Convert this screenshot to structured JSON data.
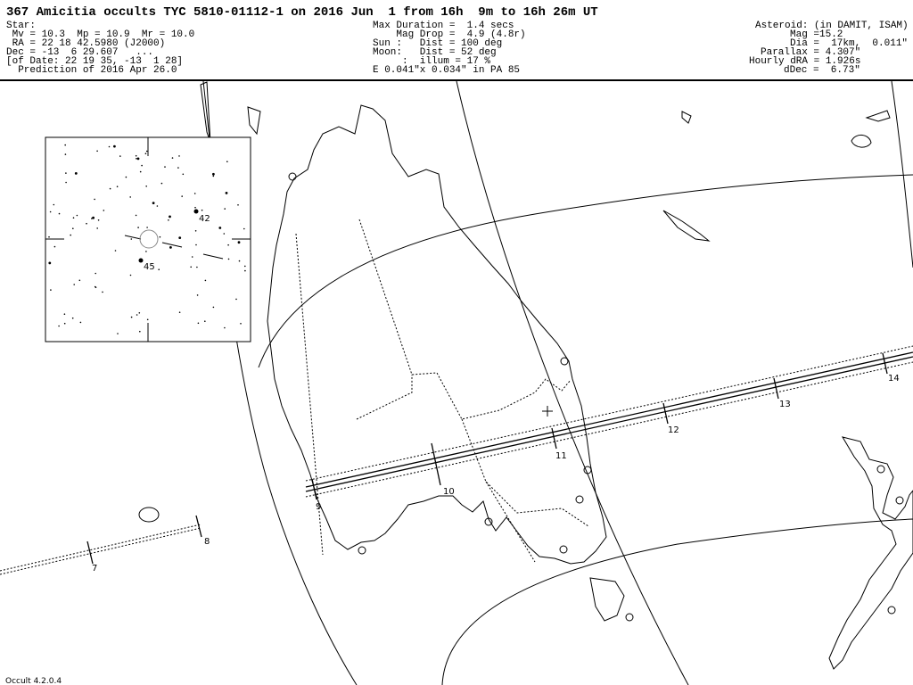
{
  "header": {
    "title": "367 Amicitia occults TYC 5810-01112-1 on 2016 Jun  1 from 16h  9m to 16h 26m UT",
    "star": [
      "Star:",
      " Mv = 10.3  Mp = 10.9  Mr = 10.0",
      " RA = 22 18 42.5980 (J2000)",
      "Dec = -13  6 29.607   ...",
      "[of Date: 22 19 35, -13  1 28]",
      "  Prediction of 2016 Apr 26.0"
    ],
    "event": [
      "Max Duration =  1.4 secs",
      "    Mag Drop =  4.9 (4.8r)",
      "Sun :   Dist = 100 deg",
      "Moon:   Dist = 52 deg",
      "     :  illum = 17 %",
      "E 0.041\"x 0.034\" in PA 85"
    ],
    "asteroid": [
      "Asteroid: (in DAMIT, ISAM)",
      "Mag =15.2",
      "Dia =  17km,  0.011\"",
      "Parallax = 4.307\"",
      "Hourly dRA = 1.926s",
      "dDec =  6.73\""
    ]
  },
  "inset": {
    "labels": [
      "42",
      "45"
    ]
  },
  "path": {
    "time_labels": [
      "7",
      "8",
      "9",
      "10",
      "11",
      "12",
      "13",
      "14"
    ]
  },
  "footer": "Occult 4.2.0.4"
}
